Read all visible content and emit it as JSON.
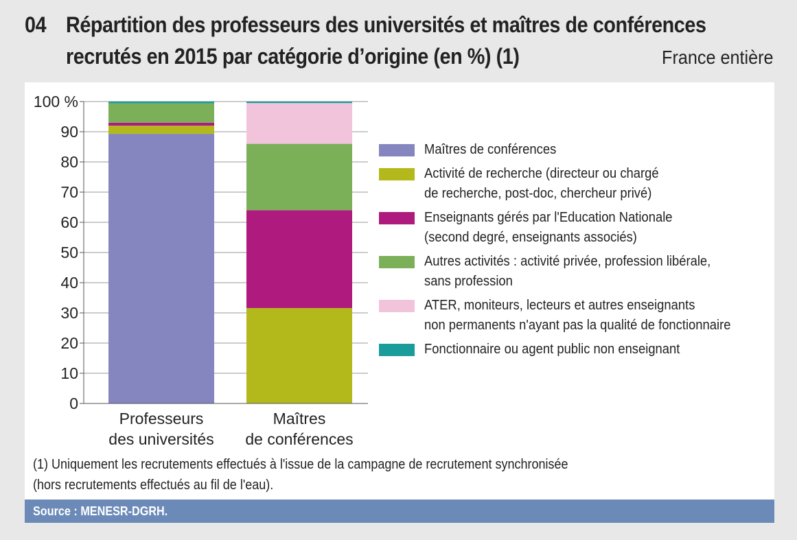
{
  "header": {
    "figure_number": "04",
    "title_line1": "Répartition des professeurs des universités et maîtres de conférences",
    "title_line2": "recrutés en 2015 par catégorie d’origine (en %) (1)",
    "scope": "France entière"
  },
  "chart_data": {
    "type": "bar",
    "stacked": true,
    "categories": [
      [
        "Professeurs",
        "des universités"
      ],
      [
        "Maîtres",
        "de conférences"
      ]
    ],
    "yticks": [
      "0",
      "10",
      "20",
      "30",
      "40",
      "50",
      "60",
      "70",
      "80",
      "90",
      "100 %"
    ],
    "ylim": [
      0,
      100
    ],
    "series": [
      {
        "name": "Maîtres de conférences",
        "legend_lines": [
          "Maîtres de conférences"
        ],
        "color": "#8585bf",
        "values": [
          89.3,
          0
        ]
      },
      {
        "name": "Activité de recherche (directeur ou chargé de recherche, post-doc, chercheur privé)",
        "legend_lines": [
          "Activité de recherche (directeur ou chargé",
          "de recherche, post-doc, chercheur privé)"
        ],
        "color": "#b3b91b",
        "values": [
          2.7,
          31.6
        ]
      },
      {
        "name": "Enseignants gérés par l'Education Nationale (second degré, enseignants associés)",
        "legend_lines": [
          "Enseignants gérés par l'Education Nationale",
          "(second degré, enseignants associés)"
        ],
        "color": "#ae1a7e",
        "values": [
          1.0,
          32.4
        ]
      },
      {
        "name": "Autres activités : activité privée, profession libérale, sans profession",
        "legend_lines": [
          "Autres activités : activité privée, profession libérale,",
          "sans profession"
        ],
        "color": "#7bb059",
        "values": [
          6.4,
          22.0
        ]
      },
      {
        "name": "ATER, moniteurs, lecteurs et autres enseignants non permanents n'ayant pas la qualité de fonctionnaire",
        "legend_lines": [
          "ATER, moniteurs, lecteurs et autres enseignants",
          "non permanents n'ayant pas la qualité de fonctionnaire"
        ],
        "color": "#f2c4db",
        "values": [
          0.0,
          13.5
        ]
      },
      {
        "name": "Fonctionnaire ou agent public non enseignant",
        "legend_lines": [
          "Fonctionnaire ou agent public non enseignant"
        ],
        "color": "#1a9c9a",
        "values": [
          0.6,
          0.5
        ]
      }
    ]
  },
  "notes": {
    "line1": "(1) Uniquement les recrutements effectués à l'issue de la campagne de recrutement synchronisée",
    "line2": "(hors recrutements effectués au fil de l'eau)."
  },
  "source": "Source : MENESR-DGRH."
}
